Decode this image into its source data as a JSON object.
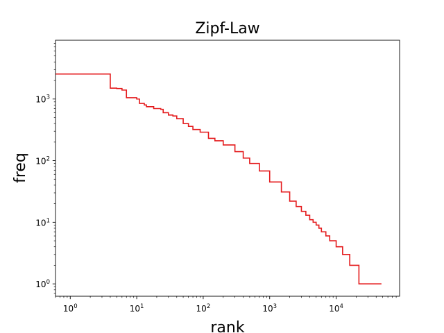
{
  "chart_data": {
    "type": "line",
    "title": "Zipf-Law",
    "xlabel": "rank",
    "ylabel": "freq",
    "xscale": "log",
    "yscale": "log",
    "xlim": [
      0.6,
      90000
    ],
    "ylim": [
      0.63,
      9000
    ],
    "grid": false,
    "legend": "none",
    "line_color": "#e41a1c",
    "x_ticks": [
      {
        "base": "10",
        "exp": "0",
        "value": 1
      },
      {
        "base": "10",
        "exp": "1",
        "value": 10
      },
      {
        "base": "10",
        "exp": "2",
        "value": 100
      },
      {
        "base": "10",
        "exp": "3",
        "value": 1000
      },
      {
        "base": "10",
        "exp": "4",
        "value": 10000
      }
    ],
    "y_ticks": [
      {
        "base": "10",
        "exp": "0",
        "value": 1
      },
      {
        "base": "10",
        "exp": "1",
        "value": 10
      },
      {
        "base": "10",
        "exp": "2",
        "value": 100
      },
      {
        "base": "10",
        "exp": "3",
        "value": 1000
      }
    ],
    "series": [
      {
        "line_style": "step",
        "points": [
          [
            0.6,
            2550
          ],
          [
            1,
            2550
          ],
          [
            4,
            1500
          ],
          [
            5,
            1480
          ],
          [
            6,
            1400
          ],
          [
            7,
            1050
          ],
          [
            10,
            1000
          ],
          [
            11,
            850
          ],
          [
            13,
            800
          ],
          [
            14,
            750
          ],
          [
            18,
            700
          ],
          [
            23,
            680
          ],
          [
            25,
            600
          ],
          [
            30,
            550
          ],
          [
            35,
            530
          ],
          [
            40,
            480
          ],
          [
            50,
            400
          ],
          [
            60,
            360
          ],
          [
            70,
            320
          ],
          [
            90,
            290
          ],
          [
            120,
            230
          ],
          [
            150,
            210
          ],
          [
            200,
            180
          ],
          [
            300,
            140
          ],
          [
            400,
            110
          ],
          [
            500,
            90
          ],
          [
            700,
            68
          ],
          [
            1000,
            45
          ],
          [
            1500,
            31
          ],
          [
            2000,
            22
          ],
          [
            2500,
            18
          ],
          [
            3000,
            15
          ],
          [
            3500,
            13
          ],
          [
            4000,
            11
          ],
          [
            4500,
            10
          ],
          [
            5000,
            9
          ],
          [
            5500,
            8
          ],
          [
            6000,
            7
          ],
          [
            7000,
            6
          ],
          [
            8000,
            5
          ],
          [
            10000,
            4
          ],
          [
            12500,
            3
          ],
          [
            16000,
            2
          ],
          [
            22000,
            1
          ],
          [
            48000,
            1
          ]
        ]
      }
    ]
  }
}
